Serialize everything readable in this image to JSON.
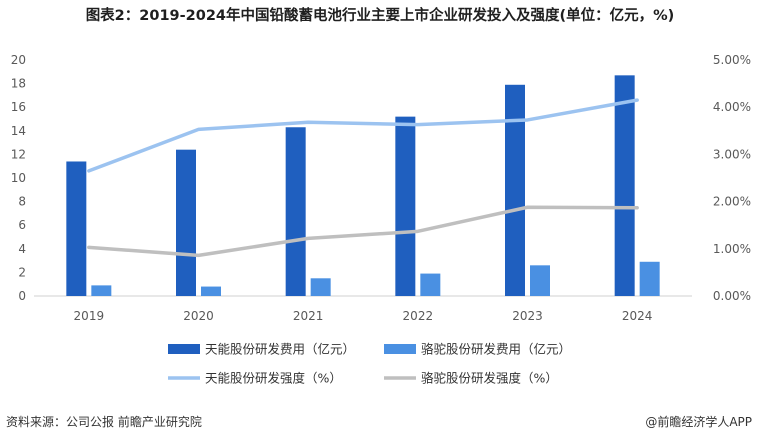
{
  "title": "图表2：2019-2024年中国铅酸蓄电池行业主要上市企业研发投入及强度(单位：亿元，%)",
  "source_left": "资料来源：公司公报 前瞻产业研究院",
  "source_right": "@前瞻经济学人APP",
  "chart_data": {
    "type": "bar",
    "title": "图表2：2019-2024年中国铅酸蓄电池行业主要上市企业研发投入及强度(单位：亿元，%)",
    "categories": [
      "2019",
      "2020",
      "2021",
      "2022",
      "2023",
      "2024"
    ],
    "ylim": [
      0,
      20
    ],
    "y_ticks": [
      "0",
      "2",
      "4",
      "6",
      "8",
      "10",
      "12",
      "14",
      "16",
      "18",
      "20"
    ],
    "y2lim": [
      0,
      5
    ],
    "y2_ticks": [
      "0.00%",
      "1.00%",
      "2.00%",
      "3.00%",
      "4.00%",
      "5.00%"
    ],
    "series": [
      {
        "name": "天能股份研发费用（亿元）",
        "type": "bar",
        "axis": "left",
        "color": "#1f5fbf",
        "values": [
          11.4,
          12.4,
          14.3,
          15.2,
          17.9,
          18.7
        ]
      },
      {
        "name": "骆驼股份研发费用（亿元）",
        "type": "bar",
        "axis": "left",
        "color": "#4a90e2",
        "values": [
          0.9,
          0.8,
          1.5,
          1.9,
          2.6,
          2.9
        ]
      },
      {
        "name": "天能股份研发强度（%）",
        "type": "line",
        "axis": "right",
        "color": "#9cc3f0",
        "values": [
          2.65,
          3.53,
          3.68,
          3.63,
          3.73,
          4.15
        ]
      },
      {
        "name": "骆驼股份研发强度（%）",
        "type": "line",
        "axis": "right",
        "color": "#bfbfbf",
        "values": [
          1.03,
          0.86,
          1.22,
          1.37,
          1.88,
          1.87
        ]
      }
    ],
    "legend_position": "bottom",
    "grid": false
  }
}
